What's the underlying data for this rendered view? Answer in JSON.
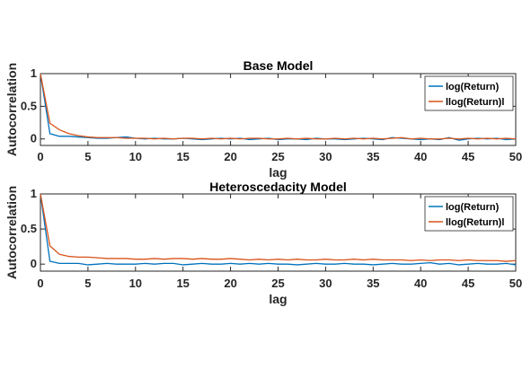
{
  "chart_data": [
    {
      "type": "line",
      "title": "Base Model",
      "xlabel": "lag",
      "ylabel": "Autocorrelation",
      "xlim": [
        0,
        50
      ],
      "ylim": [
        -0.1,
        1
      ],
      "xticks": [
        0,
        5,
        10,
        15,
        20,
        25,
        30,
        35,
        40,
        45,
        50
      ],
      "yticks": [
        0,
        0.5,
        1
      ],
      "ytick_labels": [
        "0",
        "0.5",
        "1"
      ],
      "legend_position": "top-right",
      "grid": false,
      "series": [
        {
          "name": "log(Return)",
          "color": "#0072BD",
          "x": [
            0,
            1,
            2,
            3,
            4,
            5,
            6,
            7,
            8,
            9,
            10,
            11,
            12,
            13,
            14,
            15,
            16,
            17,
            18,
            19,
            20,
            21,
            22,
            23,
            24,
            25,
            26,
            27,
            28,
            29,
            30,
            31,
            32,
            33,
            34,
            35,
            36,
            37,
            38,
            39,
            40,
            41,
            42,
            43,
            44,
            45,
            46,
            47,
            48,
            49,
            50
          ],
          "values": [
            1,
            0.08,
            0.04,
            0.04,
            0.03,
            0.02,
            0.01,
            0.01,
            0.02,
            0.03,
            0.01,
            0.0,
            0.01,
            0.0,
            0.0,
            0.01,
            0.0,
            -0.01,
            0.0,
            0.01,
            0.0,
            0.01,
            -0.01,
            0.0,
            0.01,
            -0.01,
            0.0,
            0.0,
            -0.01,
            0.01,
            0.0,
            0.0,
            -0.01,
            0.0,
            0.01,
            0.0,
            -0.01,
            0.02,
            0.01,
            0.0,
            -0.01,
            0.0,
            -0.01,
            0.02,
            -0.02,
            0.0,
            0.01,
            0.0,
            0.01,
            -0.01,
            0.0
          ]
        },
        {
          "name": "llog(Return)l",
          "color": "#D95319",
          "x": [
            0,
            1,
            2,
            3,
            4,
            5,
            6,
            7,
            8,
            9,
            10,
            11,
            12,
            13,
            14,
            15,
            16,
            17,
            18,
            19,
            20,
            21,
            22,
            23,
            24,
            25,
            26,
            27,
            28,
            29,
            30,
            31,
            32,
            33,
            34,
            35,
            36,
            37,
            38,
            39,
            40,
            41,
            42,
            43,
            44,
            45,
            46,
            47,
            48,
            49,
            50
          ],
          "values": [
            1,
            0.24,
            0.14,
            0.08,
            0.05,
            0.03,
            0.02,
            0.02,
            0.02,
            0.01,
            0.01,
            0.01,
            0.0,
            0.01,
            0.0,
            0.01,
            0.01,
            0.0,
            0.01,
            0.0,
            0.01,
            0.0,
            0.01,
            0.01,
            0.0,
            0.0,
            0.01,
            0.0,
            0.01,
            0.0,
            0.0,
            0.01,
            0.0,
            0.01,
            0.0,
            0.01,
            0.0,
            0.01,
            0.02,
            0.0,
            0.01,
            0.0,
            0.0,
            0.01,
            0.0,
            0.01,
            0.0,
            0.01,
            0.0,
            0.01,
            0.0
          ]
        }
      ]
    },
    {
      "type": "line",
      "title": "Heteroscedacity Model",
      "xlabel": "lag",
      "ylabel": "Autocorrelation",
      "xlim": [
        0,
        50
      ],
      "ylim": [
        -0.1,
        1
      ],
      "xticks": [
        0,
        5,
        10,
        15,
        20,
        25,
        30,
        35,
        40,
        45,
        50
      ],
      "yticks": [
        0,
        0.5,
        1
      ],
      "ytick_labels": [
        "0",
        "0.5",
        "1"
      ],
      "legend_position": "top-right",
      "grid": false,
      "series": [
        {
          "name": "log(Return)",
          "color": "#0072BD",
          "x": [
            0,
            1,
            2,
            3,
            4,
            5,
            6,
            7,
            8,
            9,
            10,
            11,
            12,
            13,
            14,
            15,
            16,
            17,
            18,
            19,
            20,
            21,
            22,
            23,
            24,
            25,
            26,
            27,
            28,
            29,
            30,
            31,
            32,
            33,
            34,
            35,
            36,
            37,
            38,
            39,
            40,
            41,
            42,
            43,
            44,
            45,
            46,
            47,
            48,
            49,
            50
          ],
          "values": [
            1,
            0.04,
            0.01,
            0.01,
            0.01,
            -0.01,
            0.0,
            0.01,
            0.0,
            0.0,
            0.0,
            0.01,
            0.0,
            0.01,
            0.01,
            -0.01,
            0.0,
            0.01,
            0.0,
            0.0,
            0.01,
            0.0,
            0.01,
            0.0,
            0.01,
            0.0,
            0.0,
            -0.01,
            0.0,
            0.01,
            0.0,
            0.0,
            0.01,
            0.0,
            0.0,
            -0.01,
            0.0,
            0.01,
            0.0,
            0.0,
            0.01,
            0.02,
            0.0,
            0.01,
            -0.01,
            0.0,
            0.01,
            0.0,
            0.0,
            0.01,
            -0.01
          ]
        },
        {
          "name": "llog(Return)l",
          "color": "#D95319",
          "x": [
            0,
            1,
            2,
            3,
            4,
            5,
            6,
            7,
            8,
            9,
            10,
            11,
            12,
            13,
            14,
            15,
            16,
            17,
            18,
            19,
            20,
            21,
            22,
            23,
            24,
            25,
            26,
            27,
            28,
            29,
            30,
            31,
            32,
            33,
            34,
            35,
            36,
            37,
            38,
            39,
            40,
            41,
            42,
            43,
            44,
            45,
            46,
            47,
            48,
            49,
            50
          ],
          "values": [
            1,
            0.26,
            0.14,
            0.11,
            0.1,
            0.1,
            0.09,
            0.08,
            0.08,
            0.08,
            0.07,
            0.07,
            0.08,
            0.07,
            0.08,
            0.08,
            0.07,
            0.08,
            0.07,
            0.07,
            0.08,
            0.07,
            0.06,
            0.07,
            0.06,
            0.07,
            0.06,
            0.07,
            0.06,
            0.06,
            0.07,
            0.06,
            0.06,
            0.07,
            0.06,
            0.07,
            0.06,
            0.06,
            0.06,
            0.05,
            0.06,
            0.05,
            0.06,
            0.06,
            0.05,
            0.06,
            0.05,
            0.05,
            0.05,
            0.04,
            0.05
          ]
        }
      ]
    }
  ]
}
